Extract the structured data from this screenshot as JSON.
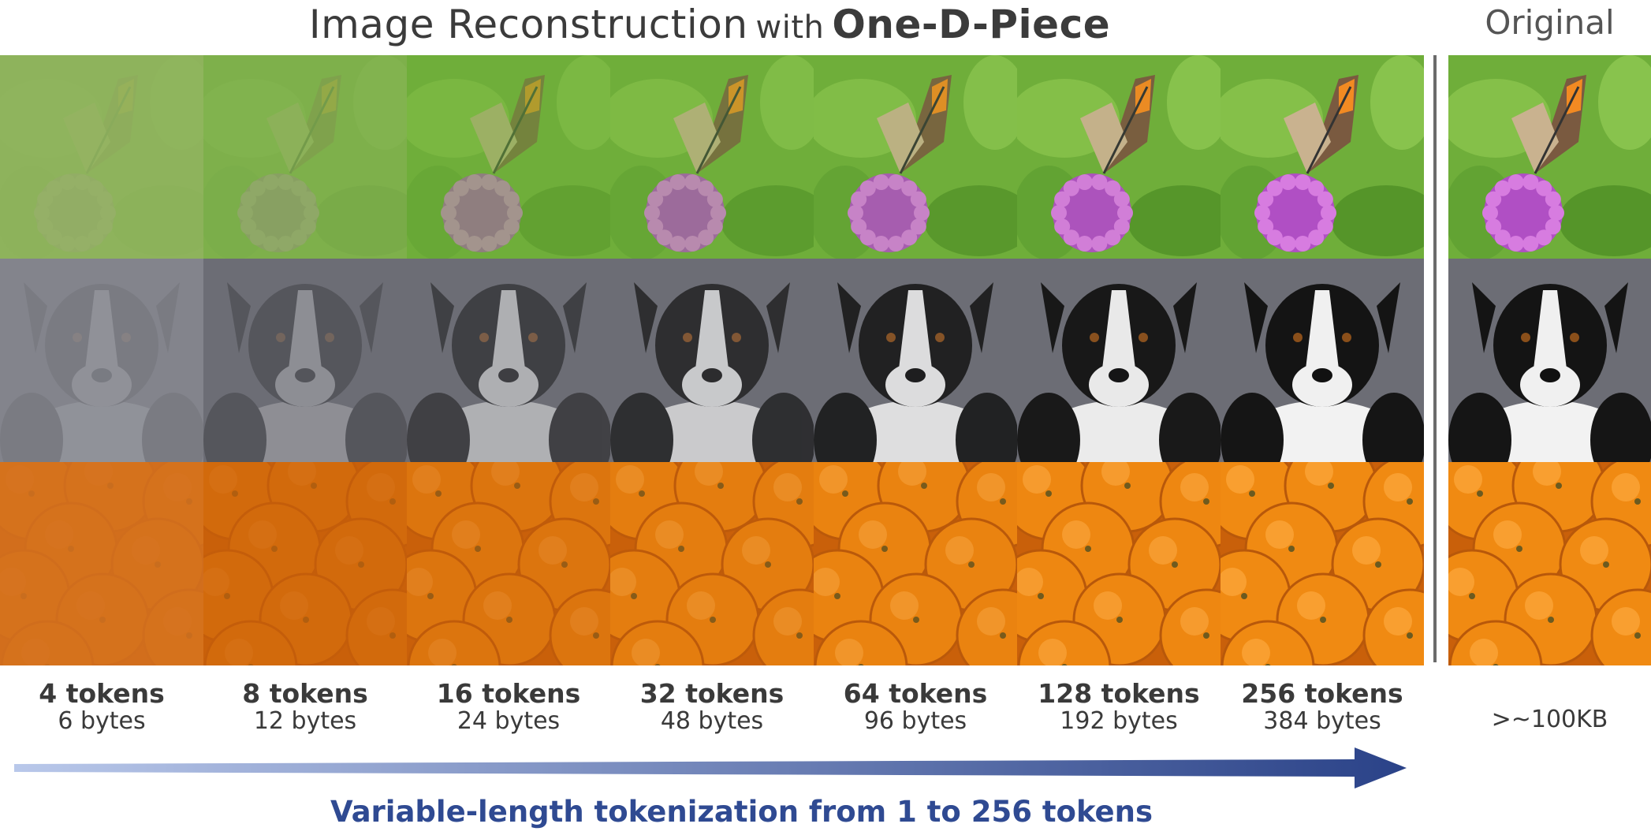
{
  "title": {
    "prefix": "Image Reconstruction",
    "connector": "with",
    "model": "One-D-Piece"
  },
  "original_label": "Original",
  "rows": [
    "butterfly",
    "dog",
    "oranges"
  ],
  "columns": [
    {
      "tokens": "4 tokens",
      "bytes": "6 bytes",
      "quality": 0.05
    },
    {
      "tokens": "8 tokens",
      "bytes": "12 bytes",
      "quality": 0.25
    },
    {
      "tokens": "16 tokens",
      "bytes": "24 bytes",
      "quality": 0.5
    },
    {
      "tokens": "32 tokens",
      "bytes": "48 bytes",
      "quality": 0.7
    },
    {
      "tokens": "64 tokens",
      "bytes": "96 bytes",
      "quality": 0.85
    },
    {
      "tokens": "128 tokens",
      "bytes": "192 bytes",
      "quality": 0.95
    },
    {
      "tokens": "256 tokens",
      "bytes": "384 bytes",
      "quality": 1.0
    }
  ],
  "original_size": ">~100KB",
  "caption": "Variable-length tokenization from 1 to 256 tokens",
  "colors": {
    "arrow_start": "#b9c8ea",
    "arrow_end": "#2a4288",
    "caption": "#2f4a92",
    "leaf_green": "#6fae3a",
    "orange": "#f08a12",
    "dog_bg": "#6c6d75",
    "flower": "#b04fc4"
  }
}
